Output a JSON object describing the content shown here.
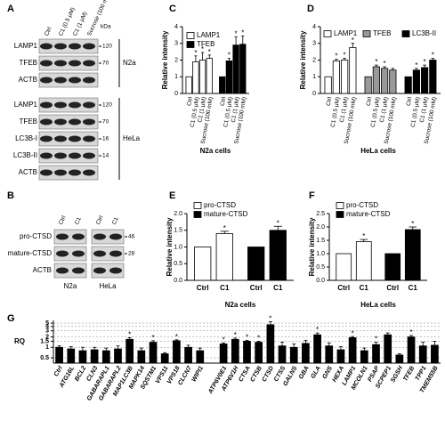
{
  "blots": [
    {
      "label": "A",
      "unit": "kDa",
      "lanes": [
        "Ctrl",
        "C1 (0.5 μM)",
        "C1 (1 μM)",
        "Sucrose (100 mM)"
      ],
      "groups": [
        {
          "name": "N2a",
          "rows": [
            {
              "protein": "LAMP1",
              "kda": 120
            },
            {
              "protein": "TFEB",
              "kda": 70
            },
            {
              "protein": "ACTB",
              "kda": null
            }
          ]
        },
        {
          "name": "HeLa",
          "rows": [
            {
              "protein": "LAMP1",
              "kda": 120
            },
            {
              "protein": "TFEB",
              "kda": 70
            },
            {
              "protein": "LC3B-I",
              "kda": 16
            },
            {
              "protein": "LC3B-II",
              "kda": 14
            },
            {
              "protein": "ACTB",
              "kda": null
            }
          ]
        }
      ]
    },
    {
      "label": "B",
      "groups": [
        {
          "name": "N2a",
          "lanes": [
            "Ctrl",
            "C1"
          ]
        },
        {
          "name": "HeLa",
          "lanes": [
            "Ctrl",
            "C1"
          ]
        }
      ],
      "rows": [
        {
          "protein": "pro-CTSD",
          "kda": 46
        },
        {
          "protein": "mature-CTSD",
          "kda": 28
        },
        {
          "protein": "ACTB",
          "kda": null
        }
      ]
    }
  ],
  "chart_data": [
    {
      "type": "bar",
      "label": "C",
      "ylabel": "Relative intensity",
      "xlabel": "N2a cells",
      "categories": [
        "Ctrl",
        "C1 (0.5 μM)",
        "C1 (1 μM)",
        "Sucrose (100 mM)"
      ],
      "series": [
        {
          "name": "LAMP1",
          "color": "#ffffff",
          "values": [
            1,
            1.9,
            2.0,
            2.1
          ],
          "errors": [
            null,
            0.35,
            0.45,
            0.2
          ],
          "stars": [
            null,
            "*",
            "*",
            "*"
          ]
        },
        {
          "name": "TFEB",
          "color": "#000000",
          "values": [
            1,
            1.95,
            2.9,
            2.95
          ],
          "errors": [
            null,
            0.15,
            0.5,
            0.5
          ],
          "stars": [
            null,
            "*",
            "*",
            "*"
          ]
        }
      ],
      "ylim": [
        0,
        4
      ],
      "yticks": [
        0,
        1,
        2,
        3,
        4
      ]
    },
    {
      "type": "bar",
      "label": "D",
      "ylabel": "Relative intensity",
      "xlabel": "HeLa cells",
      "categories": [
        "Ctrl",
        "C1 (0.5 μM)",
        "C1 (1 μM)",
        "Sucrose (100 mM)"
      ],
      "series": [
        {
          "name": "LAMP1",
          "color": "#ffffff",
          "values": [
            1,
            1.95,
            2.0,
            2.75
          ],
          "errors": [
            null,
            0.1,
            0.1,
            0.25
          ],
          "stars": [
            null,
            "*",
            "*",
            "*"
          ]
        },
        {
          "name": "TFEB",
          "color": "#999999",
          "values": [
            1,
            1.6,
            1.5,
            1.4
          ],
          "errors": [
            null,
            0.1,
            0.1,
            0.1
          ],
          "stars": [
            null,
            "*",
            "*",
            null
          ]
        },
        {
          "name": "LC3B-II",
          "color": "#000000",
          "values": [
            1,
            1.4,
            1.55,
            2.0
          ],
          "errors": [
            null,
            0.1,
            0.15,
            0.1
          ],
          "stars": [
            null,
            "*",
            "*",
            "*"
          ]
        }
      ],
      "ylim": [
        0,
        4
      ],
      "yticks": [
        0,
        1,
        2,
        3,
        4
      ]
    },
    {
      "type": "bar",
      "label": "E",
      "ylabel": "Relative intensity",
      "xlabel": "N2a cells",
      "categories": [
        "Ctrl",
        "C1"
      ],
      "series": [
        {
          "name": "pro-CTSD",
          "color": "#ffffff",
          "values": [
            1,
            1.4
          ],
          "errors": [
            null,
            0.07
          ],
          "stars": [
            null,
            "*"
          ]
        },
        {
          "name": "mature-CTSD",
          "color": "#000000",
          "values": [
            1,
            1.5
          ],
          "errors": [
            null,
            0.12
          ],
          "stars": [
            null,
            "*"
          ]
        }
      ],
      "ylim": [
        0,
        2
      ],
      "yticks": [
        {
          "value": 0,
          "label": "0.0"
        },
        {
          "value": 0.5,
          "label": "0.5"
        },
        {
          "value": 1,
          "label": "1.0"
        },
        {
          "value": 1.5,
          "label": "1.5"
        },
        {
          "value": 2,
          "label": "2.0"
        }
      ]
    },
    {
      "type": "bar",
      "label": "F",
      "ylabel": "Relative intensity",
      "xlabel": "HeLa cells",
      "categories": [
        "Ctrl",
        "C1"
      ],
      "series": [
        {
          "name": "pro-CTSD",
          "color": "#ffffff",
          "values": [
            1,
            1.45
          ],
          "errors": [
            null,
            0.08
          ],
          "stars": [
            null,
            "*"
          ]
        },
        {
          "name": "mature-CTSD",
          "color": "#000000",
          "values": [
            1,
            1.9
          ],
          "errors": [
            null,
            0.1
          ],
          "stars": [
            null,
            "*"
          ]
        }
      ],
      "ylim": [
        0,
        2.5
      ],
      "yticks": [
        {
          "value": 0,
          "label": "0.0"
        },
        {
          "value": 0.5,
          "label": "0.5"
        },
        {
          "value": 1,
          "label": "1.0"
        },
        {
          "value": 1.5,
          "label": "1.5"
        },
        {
          "value": 2,
          "label": "2.0"
        },
        {
          "value": 2.5,
          "label": "2.5"
        }
      ]
    },
    {
      "type": "bar",
      "label": "G",
      "ylabel": "RQ",
      "log": true,
      "grid": true,
      "categories": [
        "Ctrl",
        "ATG16L",
        "BCL2",
        "CLN3",
        "GABARAPL1",
        "GABARAPL2",
        "MAP1LC3B",
        "MAPK14",
        "SQSTM1",
        "VPS11",
        "VPS18",
        "CLCN7",
        "WIPI1",
        null,
        "ATP6V0E1",
        "ATP6V1H",
        "CTSA",
        "CTSB",
        "CTSD",
        "CTSS",
        "GALNS",
        "GBA",
        "GLA",
        "GNS",
        "HEXA",
        "LAMP1",
        "MCOLN1",
        "PSAP",
        "SCPEP1",
        "SGSH",
        "TFEB",
        "TPP1",
        "TMEM55B"
      ],
      "series": [
        {
          "color": "#000000",
          "values": [
            1,
            0.9,
            0.8,
            0.85,
            0.8,
            0.9,
            1.7,
            0.8,
            1.4,
            0.65,
            1.55,
            1.0,
            0.8,
            null,
            1.25,
            1.7,
            1.5,
            1.4,
            4.5,
            1.1,
            1.0,
            1.3,
            2.3,
            1.1,
            0.85,
            1.9,
            0.8,
            1.2,
            2.3,
            0.6,
            2.0,
            1.1,
            1.15
          ],
          "errors": [
            0.1,
            0.15,
            0.2,
            0.15,
            0.15,
            0.2,
            0.2,
            0.15,
            0.15,
            0.05,
            0.1,
            0.15,
            0.15,
            null,
            0.1,
            0.15,
            0.1,
            0.1,
            1.0,
            0.3,
            0.25,
            0.3,
            0.3,
            0.25,
            0.2,
            0.15,
            0.15,
            0.2,
            0.3,
            0.05,
            0.2,
            0.3,
            0.35
          ],
          "stars": [
            null,
            null,
            null,
            null,
            null,
            null,
            "*",
            null,
            "*",
            null,
            "*",
            null,
            null,
            null,
            "*",
            "*",
            "*",
            "*",
            "*",
            null,
            null,
            null,
            "*",
            null,
            null,
            "*",
            null,
            "*",
            null,
            null,
            "*",
            null,
            null
          ]
        }
      ],
      "ylim": [
        0.35,
        6
      ],
      "yticks": [
        0.5,
        1,
        1.5,
        2,
        3,
        4,
        5
      ]
    }
  ]
}
